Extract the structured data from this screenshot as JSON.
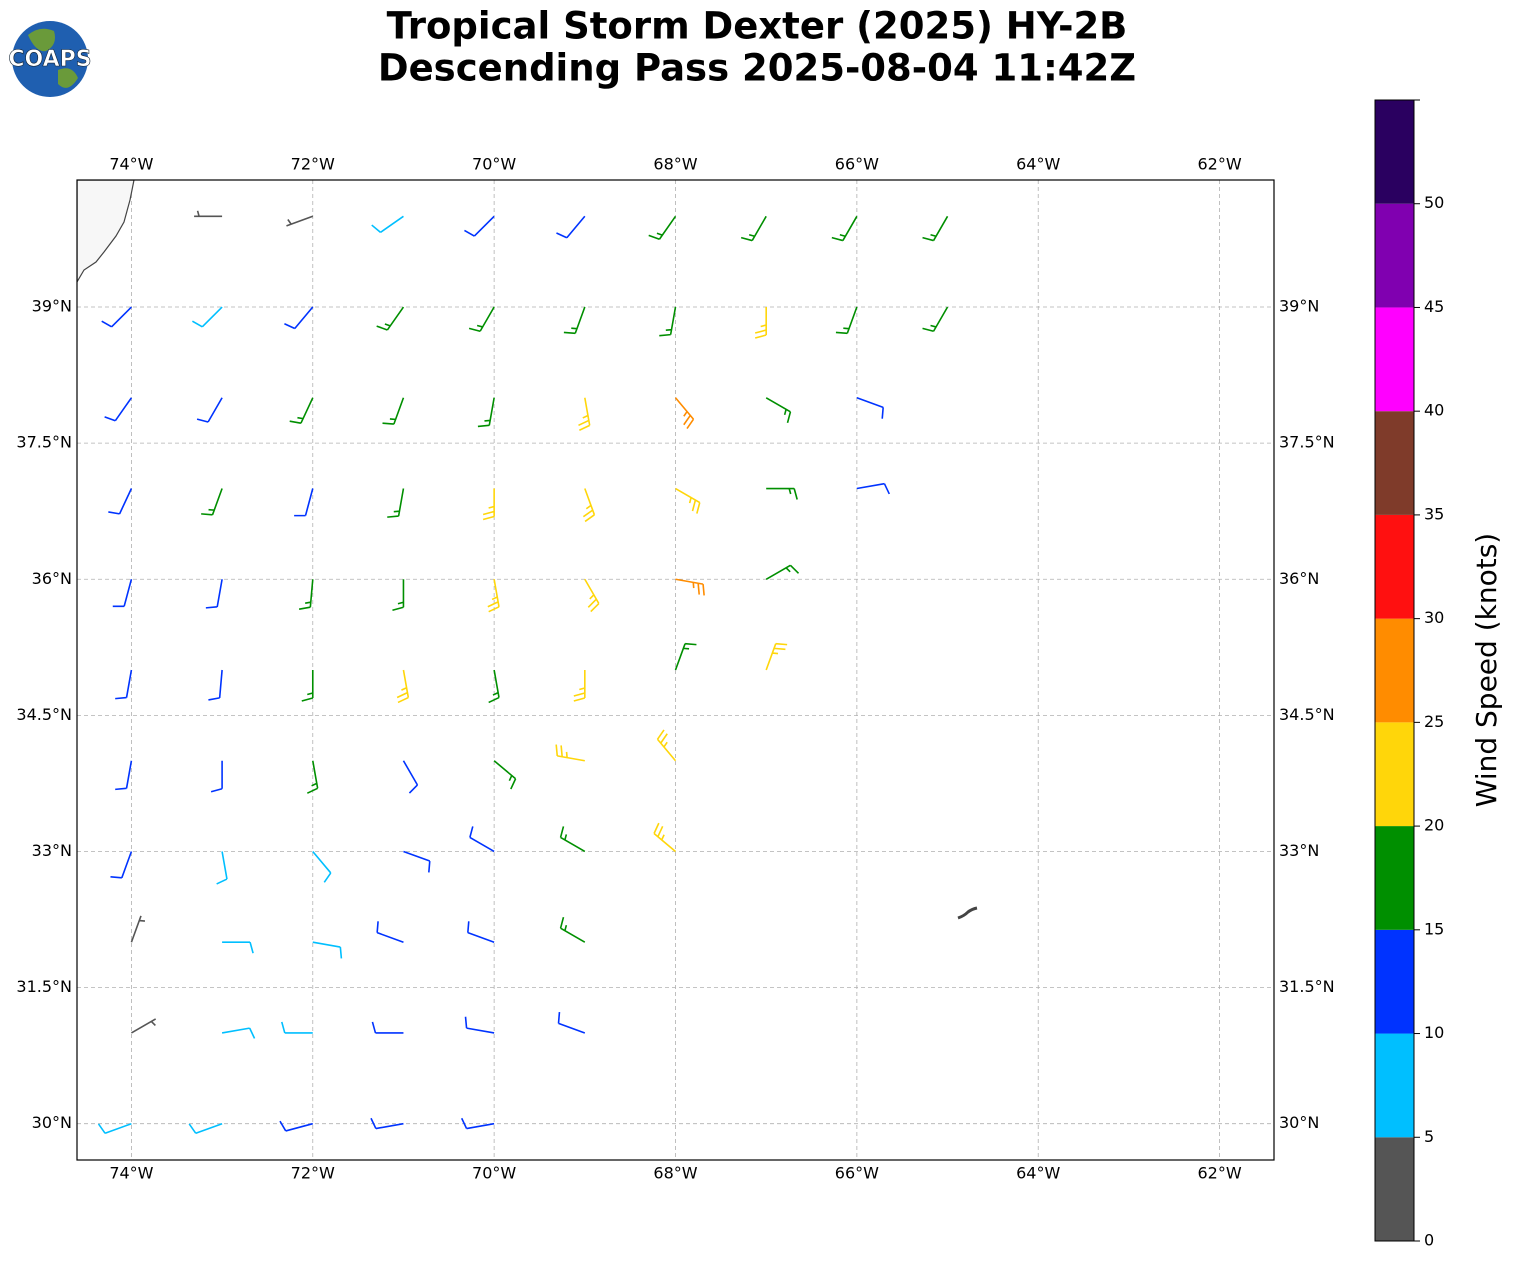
{
  "chart_data": {
    "type": "barb",
    "title_lines": [
      "Tropical Storm Dexter (2025) HY-2B",
      "Descending Pass 2025-08-04 11:42Z"
    ],
    "logo": "COAPS",
    "xlim": [
      -74.6,
      -61.4
    ],
    "ylim": [
      29.6,
      40.4
    ],
    "xticks": [
      {
        "value": -74,
        "label": "74°W"
      },
      {
        "value": -72,
        "label": "72°W"
      },
      {
        "value": -70,
        "label": "70°W"
      },
      {
        "value": -68,
        "label": "68°W"
      },
      {
        "value": -66,
        "label": "66°W"
      },
      {
        "value": -64,
        "label": "64°W"
      },
      {
        "value": -62,
        "label": "62°W"
      }
    ],
    "yticks": [
      {
        "value": 30,
        "label": "30°N"
      },
      {
        "value": 31.5,
        "label": "31.5°N"
      },
      {
        "value": 33,
        "label": "33°N"
      },
      {
        "value": 34.5,
        "label": "34.5°N"
      },
      {
        "value": 36,
        "label": "36°N"
      },
      {
        "value": 37.5,
        "label": "37.5°N"
      },
      {
        "value": 39,
        "label": "39°N"
      }
    ],
    "grid": true,
    "barbs": {
      "lon": [
        -73,
        -72,
        -71,
        -70,
        -69,
        -68,
        -67,
        -66,
        -65,
        -74,
        -73,
        -72,
        -71,
        -70,
        -69,
        -68,
        -67,
        -66,
        -65,
        -74,
        -73,
        -72,
        -71,
        -70,
        -69,
        -68,
        -67,
        -66,
        -74,
        -73,
        -72,
        -71,
        -70,
        -69,
        -68,
        -67,
        -66,
        -74,
        -73,
        -72,
        -71,
        -70,
        -69,
        -68,
        -67,
        -74,
        -73,
        -72,
        -71,
        -70,
        -69,
        -68,
        -67,
        -74,
        -73,
        -72,
        -71,
        -70,
        -69,
        -68,
        -74,
        -73,
        -72,
        -71,
        -70,
        -69,
        -68,
        -74,
        -73,
        -72,
        -71,
        -70,
        -69,
        -74,
        -73,
        -72,
        -71,
        -70,
        -69,
        -74,
        -73,
        -72,
        -71,
        -70
      ],
      "lat": [
        40,
        40,
        40,
        40,
        40,
        40,
        40,
        40,
        40,
        39,
        39,
        39,
        39,
        39,
        39,
        39,
        39,
        39,
        39,
        38,
        38,
        38,
        38,
        38,
        38,
        38,
        38,
        38,
        37,
        37,
        37,
        37,
        37,
        37,
        37,
        37,
        37,
        36,
        36,
        36,
        36,
        36,
        36,
        36,
        36,
        35,
        35,
        35,
        35,
        35,
        35,
        35,
        35,
        34,
        34,
        34,
        34,
        34,
        34,
        34,
        33,
        33,
        33,
        33,
        33,
        33,
        33,
        32,
        32,
        32,
        32,
        32,
        32,
        31,
        31,
        31,
        31,
        31,
        31,
        30,
        30,
        30,
        30,
        30
      ],
      "speed": [
        3,
        3,
        8,
        12,
        12,
        17,
        17,
        17,
        17,
        12,
        8,
        12,
        17,
        17,
        17,
        17,
        23,
        17,
        17,
        12,
        12,
        17,
        17,
        17,
        23,
        27,
        17,
        12,
        12,
        17,
        12,
        17,
        23,
        23,
        23,
        17,
        12,
        12,
        12,
        17,
        17,
        23,
        23,
        27,
        17,
        12,
        12,
        17,
        23,
        17,
        23,
        17,
        23,
        12,
        12,
        17,
        12,
        17,
        23,
        23,
        12,
        8,
        8,
        12,
        12,
        17,
        23,
        3,
        8,
        8,
        12,
        12,
        17,
        3,
        8,
        8,
        12,
        12,
        12,
        8,
        8,
        12,
        12,
        12
      ],
      "direction": [
        270,
        250,
        235,
        225,
        220,
        215,
        210,
        210,
        210,
        225,
        225,
        220,
        215,
        210,
        200,
        190,
        180,
        200,
        210,
        215,
        210,
        205,
        200,
        190,
        170,
        140,
        120,
        110,
        205,
        200,
        195,
        190,
        180,
        160,
        120,
        90,
        80,
        195,
        190,
        185,
        180,
        170,
        150,
        100,
        60,
        190,
        185,
        180,
        170,
        170,
        180,
        20,
        20,
        190,
        180,
        170,
        150,
        130,
        280,
        320,
        200,
        170,
        140,
        110,
        300,
        300,
        310,
        20,
        90,
        100,
        290,
        290,
        300,
        60,
        80,
        270,
        270,
        280,
        290,
        250,
        250,
        255,
        260,
        260
      ]
    },
    "colorbar": {
      "label": "Wind Speed (knots)",
      "bounds": [
        0,
        5,
        10,
        15,
        20,
        25,
        30,
        35,
        40,
        45,
        50,
        55
      ],
      "colors": [
        "#555555",
        "#00bfff",
        "#0033ff",
        "#008f00",
        "#ffd60a",
        "#ff8c00",
        "#ff1010",
        "#7f3b2a",
        "#ff00ff",
        "#8000b0",
        "#2a0060"
      ],
      "ticks": [
        0,
        5,
        10,
        15,
        20,
        25,
        30,
        35,
        40,
        45,
        50
      ]
    }
  }
}
